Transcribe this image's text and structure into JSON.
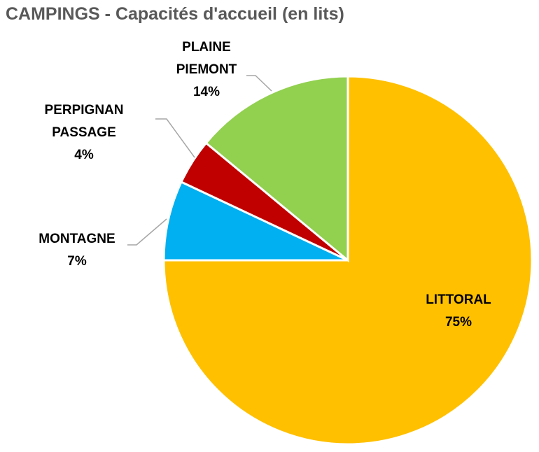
{
  "chart_data": {
    "type": "pie",
    "title": "CAMPINGS - Capacités d'accueil (en lits)",
    "categories": [
      "LITTORAL",
      "MONTAGNE",
      "PERPIGNAN\nPASSAGE",
      "PLAINE\nPIEMONT"
    ],
    "values": [
      75,
      7,
      4,
      14
    ],
    "value_labels": [
      "75%",
      "7%",
      "4%",
      "14%"
    ],
    "colors": [
      "#ffc000",
      "#00b0f0",
      "#c00000",
      "#92d050"
    ]
  }
}
